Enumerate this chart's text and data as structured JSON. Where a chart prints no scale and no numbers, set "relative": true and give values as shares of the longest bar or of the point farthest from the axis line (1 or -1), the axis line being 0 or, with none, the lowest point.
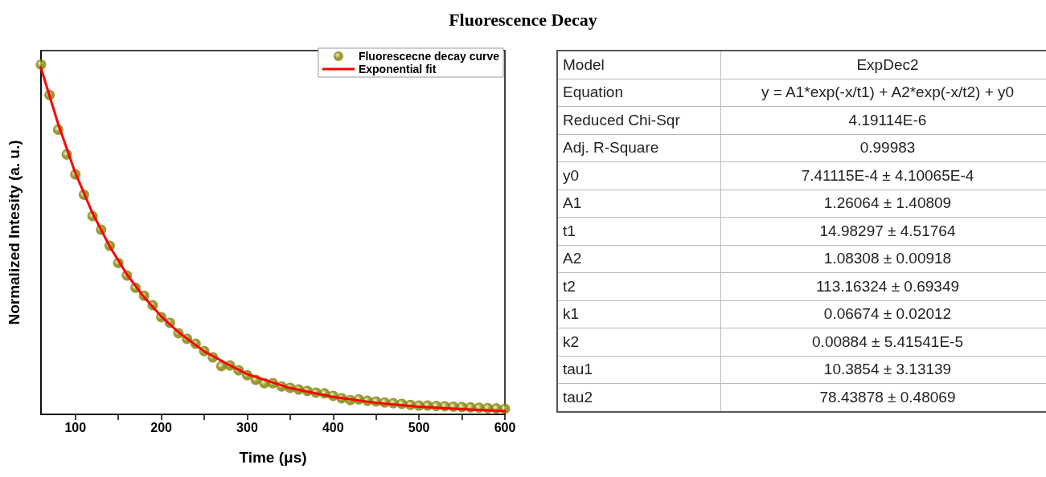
{
  "chart_data": [
    {
      "type": "scatter",
      "title": "Fluorescence Decay",
      "xlabel": "Time (μs)",
      "ylabel": "Normalized Intesity (a. u.)",
      "relative": true,
      "xlim": [
        60,
        600
      ],
      "xticks": [
        100,
        {
          "value": 150,
          "label": null
        },
        200,
        {
          "value": 250,
          "label": null
        },
        300,
        {
          "value": 350,
          "label": null
        },
        400,
        {
          "value": 450,
          "label": null
        },
        500,
        {
          "value": 550,
          "label": null
        },
        600
      ],
      "legend": "top right",
      "grid": false,
      "tick_labels": "x",
      "series": [
        {
          "name": "Fluorescecne decay curve",
          "type": "scatter",
          "marker": "circle",
          "color": "#808000",
          "x": [
            60,
            70,
            80,
            90,
            100,
            110,
            120,
            130,
            140,
            150,
            160,
            170,
            180,
            190,
            200,
            210,
            220,
            230,
            240,
            250,
            260,
            270,
            280,
            290,
            300,
            310,
            320,
            330,
            340,
            350,
            360,
            370,
            380,
            390,
            400,
            410,
            420,
            430,
            440,
            450,
            460,
            470,
            480,
            490,
            500,
            510,
            520,
            530,
            540,
            550,
            560,
            570,
            580,
            590,
            600
          ],
          "values": [
            1.0,
            0.913,
            0.814,
            0.743,
            0.686,
            0.628,
            0.567,
            0.528,
            0.482,
            0.433,
            0.397,
            0.362,
            0.339,
            0.312,
            0.278,
            0.262,
            0.232,
            0.216,
            0.202,
            0.181,
            0.163,
            0.138,
            0.14,
            0.126,
            0.112,
            0.099,
            0.089,
            0.089,
            0.08,
            0.076,
            0.071,
            0.067,
            0.062,
            0.06,
            0.053,
            0.046,
            0.041,
            0.043,
            0.039,
            0.037,
            0.034,
            0.032,
            0.03,
            0.027,
            0.025,
            0.025,
            0.024,
            0.023,
            0.022,
            0.021,
            0.02,
            0.019,
            0.018,
            0.017,
            0.016
          ]
        },
        {
          "name": "Exponential fit",
          "type": "line",
          "marker": "none",
          "line_style": "solid",
          "color": "#ff0000",
          "x": [
            60,
            80,
            100,
            120,
            140,
            160,
            180,
            200,
            220,
            250,
            280,
            300,
            350,
            400,
            450,
            500,
            550,
            600
          ],
          "values": [
            0.99,
            0.83,
            0.69,
            0.575,
            0.48,
            0.4,
            0.335,
            0.28,
            0.235,
            0.18,
            0.14,
            0.115,
            0.075,
            0.05,
            0.033,
            0.022,
            0.015,
            0.009
          ]
        }
      ]
    },
    {
      "type": "other",
      "annotations": [
        "Model",
        "ExpDec2",
        "Equation",
        "y = A1*exp(-x/t1) + A2*exp(-x/t2) + y0",
        "Reduced Chi-Sqr",
        "4.19114E-6",
        "Adj. R-Square",
        "0.99983",
        "y0",
        "7.41115E-4 ± 4.10065E-4",
        "A1",
        "1.26064 ± 1.40809",
        "t1",
        "14.98297 ± 4.51764",
        "A2",
        "1.08308 ± 0.00918",
        "t2",
        "113.16324 ± 0.69349",
        "k1",
        "0.06674 ± 0.02012",
        "k2",
        "0.00884 ± 5.41541E-5",
        "tau1",
        "10.3854 ± 3.13139",
        "tau2",
        "78.43878 ± 0.48069"
      ]
    }
  ]
}
